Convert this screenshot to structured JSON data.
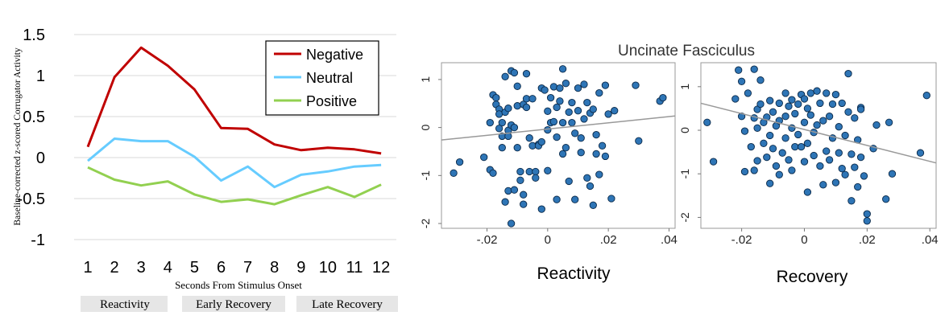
{
  "chart_data": [
    {
      "type": "line",
      "title": "",
      "xlabel": "Seconds From Stimulus Onset",
      "ylabel": "Baseline-corrected z-scored Corrugator Activity",
      "categories": [
        "1",
        "2",
        "3",
        "4",
        "5",
        "6",
        "7",
        "8",
        "9",
        "10",
        "11",
        "12"
      ],
      "ylim": [
        -1,
        1.5
      ],
      "yticks": [
        "1.5",
        "1",
        "0.5",
        "0",
        "-0.5",
        "-1"
      ],
      "grid": true,
      "legend_position": "top-right",
      "series": [
        {
          "name": "Negative",
          "color": "#c00000",
          "values": [
            0.13,
            0.98,
            1.34,
            1.12,
            0.83,
            0.36,
            0.35,
            0.16,
            0.09,
            0.12,
            0.1,
            0.05
          ]
        },
        {
          "name": "Neutral",
          "color": "#66ccff",
          "values": [
            -0.04,
            0.23,
            0.2,
            0.2,
            0.01,
            -0.28,
            -0.11,
            -0.36,
            -0.21,
            -0.17,
            -0.11,
            -0.09
          ]
        },
        {
          "name": "Positive",
          "color": "#92d050",
          "values": [
            -0.12,
            -0.27,
            -0.34,
            -0.29,
            -0.45,
            -0.54,
            -0.51,
            -0.57,
            -0.46,
            -0.36,
            -0.48,
            -0.33
          ]
        }
      ],
      "phases": [
        "Reactivity",
        "Early Recovery",
        "Late Recovery"
      ]
    },
    {
      "type": "scatter",
      "title": "Uncinate Fasciculus",
      "xlabel": "Reactivity",
      "ylabel": "",
      "xlim": [
        -0.035,
        0.042
      ],
      "ylim": [
        -2.1,
        1.35
      ],
      "xticks": [
        -0.02,
        0,
        0.02,
        0.04
      ],
      "xtick_labels": [
        "-.02",
        "0",
        ".02",
        ".04"
      ],
      "yticks": [
        1,
        0,
        -1,
        -2
      ],
      "point_color": "#2e75b6",
      "fit_line": [
        [
          -0.035,
          -0.26
        ],
        [
          0.042,
          0.24
        ]
      ],
      "points": [
        [
          -0.031,
          -0.95
        ],
        [
          -0.029,
          -0.72
        ],
        [
          -0.021,
          -0.62
        ],
        [
          -0.019,
          -0.88
        ],
        [
          -0.018,
          -0.95
        ],
        [
          -0.019,
          0.1
        ],
        [
          -0.018,
          0.68
        ],
        [
          -0.017,
          0.62
        ],
        [
          -0.017,
          0.48
        ],
        [
          -0.016,
          0.38
        ],
        [
          -0.016,
          0.28
        ],
        [
          -0.015,
          0.1
        ],
        [
          -0.016,
          -0.02
        ],
        [
          -0.015,
          -0.18
        ],
        [
          -0.015,
          -0.42
        ],
        [
          -0.014,
          0.32
        ],
        [
          -0.014,
          1.06
        ],
        [
          -0.013,
          0.4
        ],
        [
          -0.013,
          -0.06
        ],
        [
          -0.013,
          -0.18
        ],
        [
          -0.013,
          -1.32
        ],
        [
          -0.012,
          1.18
        ],
        [
          -0.012,
          0.05
        ],
        [
          -0.012,
          -2.0
        ],
        [
          -0.011,
          1.14
        ],
        [
          -0.011,
          0.0
        ],
        [
          -0.011,
          -1.3
        ],
        [
          -0.01,
          0.86
        ],
        [
          -0.01,
          0.45
        ],
        [
          -0.01,
          -0.42
        ],
        [
          -0.009,
          -0.92
        ],
        [
          -0.009,
          -1.1
        ],
        [
          -0.008,
          0.48
        ],
        [
          -0.008,
          -1.6
        ],
        [
          -0.008,
          -1.4
        ],
        [
          -0.007,
          1.12
        ],
        [
          -0.007,
          0.6
        ],
        [
          -0.007,
          0.42
        ],
        [
          -0.006,
          -0.22
        ],
        [
          -0.006,
          -0.92
        ],
        [
          -0.005,
          0.6
        ],
        [
          -0.005,
          -0.38
        ],
        [
          -0.004,
          -0.92
        ],
        [
          -0.004,
          -1.05
        ],
        [
          -0.003,
          -0.35
        ],
        [
          -0.003,
          -0.38
        ],
        [
          -0.002,
          0.82
        ],
        [
          -0.002,
          -0.3
        ],
        [
          -0.002,
          -1.7
        ],
        [
          -0.001,
          0.78
        ],
        [
          0.0,
          0.34
        ],
        [
          0.0,
          -0.05
        ],
        [
          0.0,
          -0.9
        ],
        [
          0.001,
          0.1
        ],
        [
          0.001,
          0.62
        ],
        [
          0.002,
          0.85
        ],
        [
          0.002,
          0.12
        ],
        [
          0.003,
          0.42
        ],
        [
          0.003,
          -0.2
        ],
        [
          0.004,
          0.82
        ],
        [
          0.004,
          0.55
        ],
        [
          0.005,
          1.22
        ],
        [
          0.005,
          0.1
        ],
        [
          0.005,
          -0.55
        ],
        [
          0.006,
          0.92
        ],
        [
          0.006,
          -0.42
        ],
        [
          0.007,
          0.32
        ],
        [
          0.007,
          -1.12
        ],
        [
          0.008,
          0.52
        ],
        [
          0.008,
          0.1
        ],
        [
          0.009,
          -0.12
        ],
        [
          0.009,
          -1.5
        ],
        [
          0.01,
          0.82
        ],
        [
          0.01,
          0.35
        ],
        [
          0.011,
          -0.22
        ],
        [
          0.011,
          -0.52
        ],
        [
          0.012,
          0.9
        ],
        [
          0.012,
          0.18
        ],
        [
          0.013,
          0.52
        ],
        [
          0.013,
          -1.05
        ],
        [
          0.014,
          0.3
        ],
        [
          0.014,
          -1.22
        ],
        [
          0.015,
          0.38
        ],
        [
          0.015,
          -1.62
        ],
        [
          0.016,
          -0.15
        ],
        [
          0.016,
          -0.55
        ],
        [
          0.017,
          0.72
        ],
        [
          0.017,
          -0.98
        ],
        [
          0.018,
          -0.38
        ],
        [
          0.019,
          0.88
        ],
        [
          0.019,
          -0.6
        ],
        [
          0.02,
          0.28
        ],
        [
          0.021,
          -1.48
        ],
        [
          0.022,
          0.35
        ],
        [
          0.029,
          0.88
        ],
        [
          0.03,
          -0.28
        ],
        [
          0.037,
          0.55
        ],
        [
          0.038,
          0.62
        ],
        [
          -0.014,
          -1.55
        ],
        [
          0.003,
          -1.5
        ]
      ]
    },
    {
      "type": "scatter",
      "title": "",
      "xlabel": "Recovery",
      "ylabel": "",
      "xlim": [
        -0.033,
        0.042
      ],
      "ylim": [
        -2.25,
        1.55
      ],
      "xticks": [
        -0.02,
        0,
        0.02,
        0.04
      ],
      "xtick_labels": [
        "-.02",
        "0",
        ".02",
        ".04"
      ],
      "yticks": [
        1,
        0,
        -1,
        -2
      ],
      "point_color": "#2e75b6",
      "fit_line": [
        [
          -0.033,
          0.62
        ],
        [
          0.042,
          -0.75
        ]
      ],
      "points": [
        [
          -0.031,
          0.18
        ],
        [
          -0.029,
          -0.72
        ],
        [
          -0.022,
          0.72
        ],
        [
          -0.021,
          1.38
        ],
        [
          -0.02,
          1.12
        ],
        [
          -0.02,
          0.32
        ],
        [
          -0.019,
          -0.02
        ],
        [
          -0.019,
          -0.95
        ],
        [
          -0.018,
          0.85
        ],
        [
          -0.017,
          -0.38
        ],
        [
          -0.016,
          1.4
        ],
        [
          -0.016,
          0.28
        ],
        [
          -0.016,
          -0.92
        ],
        [
          -0.015,
          0.48
        ],
        [
          -0.015,
          0.05
        ],
        [
          -0.015,
          -0.7
        ],
        [
          -0.014,
          1.15
        ],
        [
          -0.014,
          0.6
        ],
        [
          -0.013,
          0.18
        ],
        [
          -0.013,
          -0.3
        ],
        [
          -0.012,
          0.3
        ],
        [
          -0.012,
          -0.62
        ],
        [
          -0.011,
          0.68
        ],
        [
          -0.011,
          -0.12
        ],
        [
          -0.011,
          -1.22
        ],
        [
          -0.01,
          0.42
        ],
        [
          -0.01,
          -0.42
        ],
        [
          -0.009,
          0.1
        ],
        [
          -0.009,
          -0.82
        ],
        [
          -0.008,
          0.62
        ],
        [
          -0.008,
          0.22
        ],
        [
          -0.008,
          -1.02
        ],
        [
          -0.007,
          1.52
        ],
        [
          -0.007,
          -0.52
        ],
        [
          -0.006,
          0.85
        ],
        [
          -0.006,
          0.32
        ],
        [
          -0.006,
          -0.18
        ],
        [
          -0.005,
          0.55
        ],
        [
          -0.005,
          -0.68
        ],
        [
          -0.004,
          0.7
        ],
        [
          -0.004,
          0.05
        ],
        [
          -0.004,
          -0.92
        ],
        [
          -0.003,
          0.38
        ],
        [
          -0.003,
          -0.38
        ],
        [
          -0.002,
          0.6
        ],
        [
          -0.002,
          -0.1
        ],
        [
          -0.001,
          0.82
        ],
        [
          -0.001,
          -0.38
        ],
        [
          0.0,
          0.72
        ],
        [
          0.0,
          0.18
        ],
        [
          0.0,
          -0.72
        ],
        [
          0.001,
          0.5
        ],
        [
          0.001,
          -0.3
        ],
        [
          0.001,
          -1.42
        ],
        [
          0.002,
          0.85
        ],
        [
          0.002,
          0.35
        ],
        [
          0.003,
          -0.05
        ],
        [
          0.003,
          -0.58
        ],
        [
          0.004,
          0.9
        ],
        [
          0.004,
          0.12
        ],
        [
          0.005,
          0.62
        ],
        [
          0.005,
          -0.82
        ],
        [
          0.006,
          0.22
        ],
        [
          0.006,
          -1.25
        ],
        [
          0.007,
          0.85
        ],
        [
          0.007,
          -0.48
        ],
        [
          0.008,
          0.32
        ],
        [
          0.008,
          -0.68
        ],
        [
          0.009,
          0.6
        ],
        [
          0.009,
          -0.18
        ],
        [
          0.01,
          0.82
        ],
        [
          0.01,
          -1.2
        ],
        [
          0.011,
          0.08
        ],
        [
          0.011,
          -0.52
        ],
        [
          0.012,
          0.62
        ],
        [
          0.012,
          -0.88
        ],
        [
          0.013,
          -0.12
        ],
        [
          0.013,
          -1.02
        ],
        [
          0.014,
          1.3
        ],
        [
          0.014,
          0.42
        ],
        [
          0.015,
          -0.55
        ],
        [
          0.015,
          -1.62
        ],
        [
          0.016,
          0.28
        ],
        [
          0.016,
          -0.85
        ],
        [
          0.017,
          -0.22
        ],
        [
          0.017,
          -1.3
        ],
        [
          0.018,
          0.52
        ],
        [
          0.018,
          -0.62
        ],
        [
          0.019,
          -1.05
        ],
        [
          0.02,
          -1.92
        ],
        [
          0.02,
          -2.08
        ],
        [
          0.021,
          -2.22
        ],
        [
          0.022,
          -0.42
        ],
        [
          0.023,
          0.12
        ],
        [
          0.026,
          -1.58
        ],
        [
          0.027,
          0.18
        ],
        [
          0.028,
          -1.0
        ],
        [
          0.037,
          -0.52
        ],
        [
          0.039,
          0.8
        ],
        [
          0.018,
          0.48
        ]
      ]
    }
  ]
}
